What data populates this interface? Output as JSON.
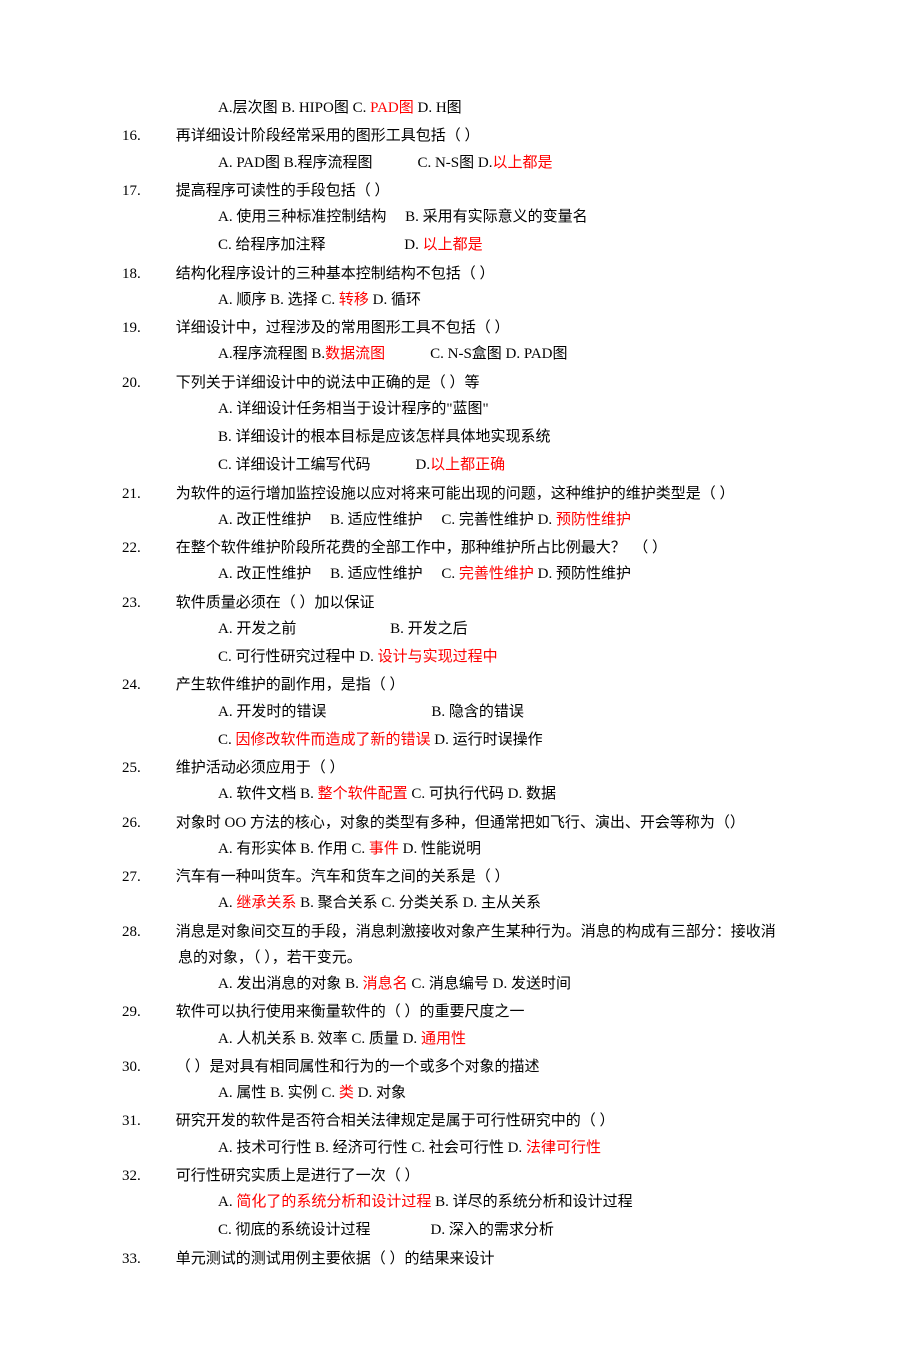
{
  "colors": {
    "text": "#000000",
    "highlight": "#ff0000",
    "background": "#ffffff"
  },
  "font": {
    "family": "SimSun",
    "size_pt": 11,
    "line_height": 1.75
  },
  "pre_choice": {
    "a": "A.层次图  B. HIPO图  C. ",
    "c": "PAD图",
    "d": "  D. H图"
  },
  "questions": [
    {
      "n": "16.",
      "text": "再详细设计阶段经常采用的图形工具包括（  ）",
      "choices": [
        {
          "pre": "A. PAD图  B.程序流程图　　　C. N-S图  D.",
          "red": "以上都是",
          "post": ""
        }
      ]
    },
    {
      "n": "17.",
      "text": "提高程序可读性的手段包括（  ）",
      "choices": [
        {
          "pre": "A. 使用三种标准控制结构　 B. 采用有实际意义的变量名",
          "red": "",
          "post": ""
        },
        {
          "pre": "C. 给程序加注释　　　　　 D. ",
          "red": "以上都是",
          "post": ""
        }
      ]
    },
    {
      "n": "18.",
      "text": "结构化程序设计的三种基本控制结构不包括（  ）",
      "choices": [
        {
          "pre": "A. 顺序  B. 选择  C. ",
          "red": "转移",
          "post": "  D. 循环"
        }
      ]
    },
    {
      "n": "19.",
      "text": "详细设计中，过程涉及的常用图形工具不包括（  ）",
      "choices": [
        {
          "pre": "A.程序流程图  B.",
          "red": "数据流图",
          "post": "　　　C. N-S盒图  D. PAD图"
        }
      ]
    },
    {
      "n": "20.",
      "text": "下列关于详细设计中的说法中正确的是（  ）等",
      "choices": [
        {
          "pre": "A.  详细设计任务相当于设计程序的\"蓝图\"",
          "red": "",
          "post": ""
        },
        {
          "pre": "B.  详细设计的根本目标是应该怎样具体地实现系统",
          "red": "",
          "post": ""
        },
        {
          "pre": "C.  详细设计工编写代码　　　D.",
          "red": "以上都正确",
          "post": ""
        }
      ]
    },
    {
      "n": "21.",
      "text": "为软件的运行增加监控设施以应对将来可能出现的问题，这种维护的维护类型是（ ）",
      "choices": [
        {
          "pre": "A. 改正性维护　  B. 适应性维护　  C. 完善性维护  D. ",
          "red": "预防性维护",
          "post": ""
        }
      ]
    },
    {
      "n": "22.",
      "text": "在整个软件维护阶段所花费的全部工作中，那种维护所占比例最大？　（  ）",
      "choices": [
        {
          "pre": "A. 改正性维护　  B. 适应性维护　  C. ",
          "red": "完善性维护",
          "post": "  D. 预防性维护"
        }
      ]
    },
    {
      "n": "23.",
      "text": "软件质量必须在（  ）加以保证",
      "choices": [
        {
          "pre": "A. 开发之前　　　　　　 B.  开发之后",
          "red": "",
          "post": ""
        },
        {
          "pre": "C. 可行性研究过程中  D. ",
          "red": "设计与实现过程中",
          "post": ""
        }
      ]
    },
    {
      "n": "24.",
      "text": "产生软件维护的副作用，是指（  ）",
      "choices": [
        {
          "pre": "A. 开发时的错误　　　　　　　B. 隐含的错误",
          "red": "",
          "post": ""
        },
        {
          "pre": "C. ",
          "red": "因修改软件而造成了新的错误",
          "post": "  D. 运行时误操作"
        }
      ]
    },
    {
      "n": "25.",
      "text": "维护活动必须应用于（  ）",
      "choices": [
        {
          "pre": "A. 软件文档  B. ",
          "red": "整个软件配置",
          "post": "  C. 可执行代码  D. 数据"
        }
      ]
    },
    {
      "n": "26.",
      "text": "对象时 OO 方法的核心，对象的类型有多种，但通常把如飞行、演出、开会等称为（）",
      "choices": [
        {
          "pre": "A. 有形实体  B. 作用  C. ",
          "red": "事件",
          "post": "  D. 性能说明"
        }
      ]
    },
    {
      "n": "27.",
      "text": "汽车有一种叫货车。汽车和货车之间的关系是（  ）",
      "choices": [
        {
          "pre": "A. ",
          "red": "继承关系",
          "post": "  B. 聚合关系  C. 分类关系  D. 主从关系"
        }
      ]
    },
    {
      "n": "28.",
      "text": "消息是对象间交互的手段，消息刺激接收对象产生某种行为。消息的构成有三部分：接收消息的对象，（  ），若干变元。",
      "choices": [
        {
          "pre": "A. 发出消息的对象  B. ",
          "red": "消息名",
          "post": "  C. 消息编号  D. 发送时间"
        }
      ]
    },
    {
      "n": "29.",
      "text": "软件可以执行使用来衡量软件的（  ）的重要尺度之一",
      "choices": [
        {
          "pre": "A. 人机关系  B. 效率  C. 质量  D. ",
          "red": "通用性",
          "post": ""
        }
      ]
    },
    {
      "n": "30.",
      "text": "（  ）是对具有相同属性和行为的一个或多个对象的描述",
      "choices": [
        {
          "pre": "A. 属性  B. 实例  C. ",
          "red": "类",
          "post": "  D. 对象"
        }
      ]
    },
    {
      "n": "31.",
      "text": "研究开发的软件是否符合相关法律规定是属于可行性研究中的（  ）",
      "choices": [
        {
          "pre": "A. 技术可行性  B. 经济可行性  C. 社会可行性  D. ",
          "red": "法律可行性",
          "post": ""
        }
      ]
    },
    {
      "n": "32.",
      "text": "可行性研究实质上是进行了一次（  ）",
      "choices": [
        {
          "pre": "A. ",
          "red": "简化了的系统分析和设计过程",
          "post": "  B. 详尽的系统分析和设计过程"
        },
        {
          "pre": "C. 彻底的系统设计过程　　　　D. 深入的需求分析",
          "red": "",
          "post": ""
        }
      ]
    },
    {
      "n": "33.",
      "text": "单元测试的测试用例主要依据（  ）的结果来设计",
      "choices": []
    }
  ]
}
